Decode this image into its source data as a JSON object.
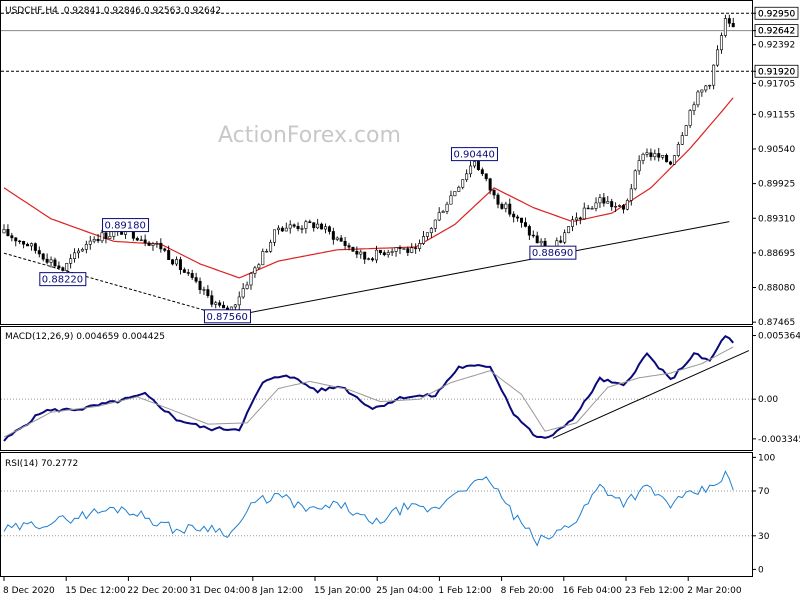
{
  "header": {
    "symbol": "USDCHF,H4",
    "ohlc": "0.92841 0.92846 0.92563 0.92642"
  },
  "watermark": "ActionForex.com",
  "colors": {
    "candle": "#000000",
    "ma": "#dd2222",
    "macd": "#0a0a7a",
    "signal": "#999999",
    "rsi": "#1f7fd0",
    "label_border": "#0a0a7a"
  },
  "chart_data": [
    {
      "type": "candlestick",
      "title": "USDCHF,H4",
      "y_ticks": [
        "0.92950",
        "0.92642",
        "0.92392",
        "0.91920",
        "0.91705",
        "0.91155",
        "0.90540",
        "0.89925",
        "0.89310",
        "0.88695",
        "0.88080",
        "0.87465"
      ],
      "ylim": [
        0.8745,
        0.9315
      ],
      "x_ticks": [
        "8 Dec 2020",
        "15 Dec 12:00",
        "22 Dec 20:00",
        "31 Dec 04:00",
        "8 Jan 12:00",
        "15 Jan 20:00",
        "25 Jan 04:00",
        "1 Feb 12:00",
        "8 Feb 20:00",
        "16 Feb 04:00",
        "23 Feb 12:00",
        "2 Mar 20:00"
      ],
      "horizontal_lines": [
        {
          "value": 0.9295,
          "style": "dashed",
          "label": "0.92950"
        },
        {
          "value": 0.92642,
          "style": "solid",
          "label": "0.92642"
        },
        {
          "value": 0.9192,
          "style": "dashed",
          "label": "0.91920"
        }
      ],
      "trendlines": [
        {
          "from": {
            "bar": 0,
            "price": 0.8869
          },
          "to": {
            "bar": 57,
            "price": 0.8756
          },
          "style": "dashed"
        },
        {
          "from": {
            "bar": 57,
            "price": 0.8756
          },
          "to": {
            "bar": 185,
            "price": 0.8925
          },
          "style": "solid"
        }
      ],
      "annotations": [
        {
          "text": "0.89180",
          "bar": 31,
          "price": 0.8918
        },
        {
          "text": "0.88220",
          "bar": 15,
          "price": 0.8822
        },
        {
          "text": "0.87560",
          "bar": 57,
          "price": 0.8756
        },
        {
          "text": "0.90440",
          "bar": 120,
          "price": 0.9044
        },
        {
          "text": "0.88690",
          "bar": 140,
          "price": 0.8869
        }
      ],
      "close_waypoints": [
        [
          0,
          0.8905
        ],
        [
          6,
          0.8885
        ],
        [
          15,
          0.884
        ],
        [
          22,
          0.8895
        ],
        [
          31,
          0.891
        ],
        [
          40,
          0.888
        ],
        [
          50,
          0.8805
        ],
        [
          57,
          0.876
        ],
        [
          63,
          0.883
        ],
        [
          70,
          0.8915
        ],
        [
          80,
          0.892
        ],
        [
          92,
          0.886
        ],
        [
          100,
          0.888
        ],
        [
          105,
          0.887
        ],
        [
          112,
          0.895
        ],
        [
          120,
          0.9035
        ],
        [
          125,
          0.897
        ],
        [
          130,
          0.8935
        ],
        [
          136,
          0.889
        ],
        [
          140,
          0.8875
        ],
        [
          146,
          0.893
        ],
        [
          152,
          0.8965
        ],
        [
          158,
          0.8945
        ],
        [
          163,
          0.905
        ],
        [
          170,
          0.903
        ],
        [
          176,
          0.914
        ],
        [
          180,
          0.9175
        ],
        [
          184,
          0.928
        ],
        [
          186,
          0.9264
        ]
      ],
      "ma_waypoints": [
        [
          0,
          0.8985
        ],
        [
          12,
          0.893
        ],
        [
          28,
          0.889
        ],
        [
          40,
          0.8885
        ],
        [
          50,
          0.885
        ],
        [
          60,
          0.8825
        ],
        [
          70,
          0.8855
        ],
        [
          85,
          0.8875
        ],
        [
          105,
          0.888
        ],
        [
          115,
          0.892
        ],
        [
          125,
          0.8985
        ],
        [
          135,
          0.895
        ],
        [
          145,
          0.8925
        ],
        [
          155,
          0.894
        ],
        [
          165,
          0.8985
        ],
        [
          175,
          0.9055
        ],
        [
          183,
          0.912
        ],
        [
          186,
          0.9145
        ]
      ]
    },
    {
      "type": "line",
      "title": "MACD(12,26,9) 0.004659 0.004425",
      "y_ticks": [
        "0.005364",
        "0.00",
        "-0.003345"
      ],
      "ylim": [
        -0.0042,
        0.006
      ],
      "series": [
        {
          "name": "MACD",
          "waypoints": [
            [
              0,
              -0.0035
            ],
            [
              10,
              -0.001
            ],
            [
              20,
              -0.0008
            ],
            [
              30,
              -0.0001
            ],
            [
              36,
              0.0004
            ],
            [
              44,
              -0.0017
            ],
            [
              52,
              -0.0025
            ],
            [
              60,
              -0.0025
            ],
            [
              66,
              0.0014
            ],
            [
              72,
              0.0021
            ],
            [
              80,
              0.0007
            ],
            [
              86,
              0.0011
            ],
            [
              94,
              -0.0008
            ],
            [
              102,
              0.0002
            ],
            [
              110,
              0.0003
            ],
            [
              116,
              0.0027
            ],
            [
              124,
              0.0028
            ],
            [
              130,
              -0.0012
            ],
            [
              136,
              -0.0033
            ],
            [
              140,
              -0.0031
            ],
            [
              146,
              -0.0013
            ],
            [
              152,
              0.0017
            ],
            [
              158,
              0.0011
            ],
            [
              164,
              0.0038
            ],
            [
              170,
              0.0016
            ],
            [
              176,
              0.0038
            ],
            [
              180,
              0.0032
            ],
            [
              184,
              0.0054
            ],
            [
              186,
              0.0047
            ]
          ]
        },
        {
          "name": "Signal",
          "waypoints": [
            [
              0,
              -0.0032
            ],
            [
              12,
              -0.0011
            ],
            [
              24,
              -0.0006
            ],
            [
              34,
              0.0002
            ],
            [
              42,
              -0.0008
            ],
            [
              52,
              -0.0021
            ],
            [
              62,
              -0.002
            ],
            [
              70,
              0.0009
            ],
            [
              78,
              0.0015
            ],
            [
              88,
              0.0008
            ],
            [
              96,
              -0.0002
            ],
            [
              106,
              0.0
            ],
            [
              114,
              0.0014
            ],
            [
              124,
              0.0024
            ],
            [
              132,
              0.0004
            ],
            [
              138,
              -0.0027
            ],
            [
              146,
              -0.002
            ],
            [
              154,
              0.001
            ],
            [
              162,
              0.0018
            ],
            [
              170,
              0.0022
            ],
            [
              178,
              0.003
            ],
            [
              186,
              0.0044
            ]
          ]
        }
      ],
      "trendlines": [
        {
          "from": {
            "bar": 140,
            "value": -0.0033
          },
          "to": {
            "bar": 190,
            "value": 0.0041
          },
          "style": "solid"
        }
      ]
    },
    {
      "type": "line",
      "title": "RSI(14) 70.2772",
      "y_ticks": [
        "100",
        "70",
        "30",
        "0"
      ],
      "ylim": [
        -5,
        103
      ],
      "dotted_levels": [
        70,
        30
      ],
      "series": [
        {
          "name": "RSI",
          "waypoints": [
            [
              0,
              35
            ],
            [
              8,
              40
            ],
            [
              15,
              44
            ],
            [
              22,
              50
            ],
            [
              30,
              55
            ],
            [
              36,
              47
            ],
            [
              44,
              35
            ],
            [
              52,
              38
            ],
            [
              58,
              32
            ],
            [
              64,
              60
            ],
            [
              70,
              66
            ],
            [
              78,
              52
            ],
            [
              86,
              58
            ],
            [
              94,
              40
            ],
            [
              102,
              55
            ],
            [
              110,
              53
            ],
            [
              116,
              72
            ],
            [
              124,
              80
            ],
            [
              130,
              48
            ],
            [
              136,
              25
            ],
            [
              140,
              30
            ],
            [
              146,
              45
            ],
            [
              152,
              75
            ],
            [
              158,
              60
            ],
            [
              164,
              73
            ],
            [
              170,
              58
            ],
            [
              176,
              68
            ],
            [
              180,
              72
            ],
            [
              184,
              85
            ],
            [
              186,
              70
            ]
          ]
        }
      ]
    }
  ]
}
